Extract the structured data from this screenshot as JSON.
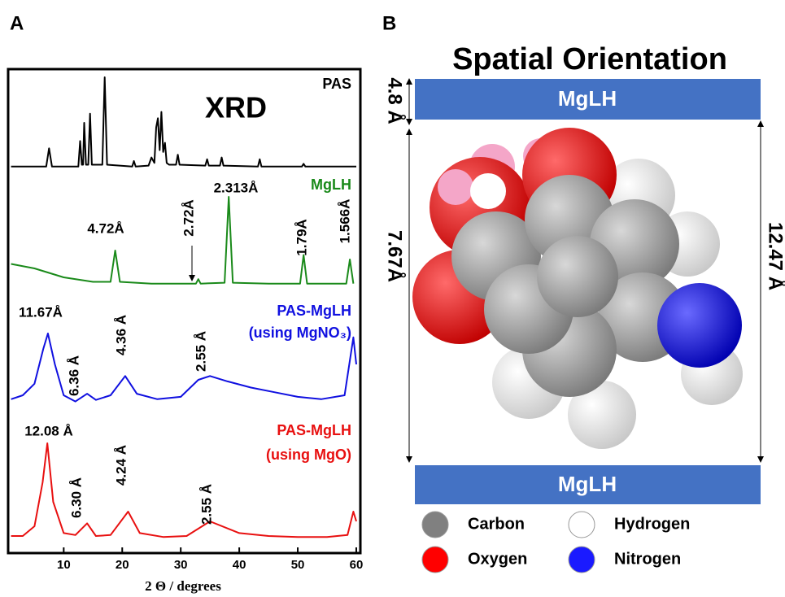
{
  "panel_labels": [
    "A",
    "B"
  ],
  "chart_data": {
    "type": "line",
    "title": "XRD",
    "x_label": "2 Θ / degrees",
    "xlim": [
      0.5,
      60.7
    ],
    "xticks": [
      10,
      20,
      30,
      40,
      50,
      60
    ],
    "series": [
      {
        "name": "PAS",
        "color": "#000000",
        "x": [
          1,
          7,
          7.5,
          8,
          12.5,
          12.8,
          13.1,
          13.3,
          13.5,
          13.8,
          14.2,
          14.5,
          14.8,
          16.6,
          17,
          17.4,
          21.7,
          22,
          22.3,
          24.5,
          25,
          25.5,
          25.8,
          26.1,
          26.4,
          26.7,
          27,
          27.3,
          27.6,
          28,
          29.2,
          29.5,
          29.8,
          34.2,
          34.5,
          34.8,
          36.7,
          37,
          37.3,
          43.2,
          43.5,
          43.8,
          50.7,
          51,
          51.3,
          60
        ],
        "values": [
          2,
          2,
          22,
          2,
          2,
          30,
          4,
          4,
          50,
          4,
          4,
          60,
          4,
          4,
          100,
          4,
          2,
          8,
          2,
          3,
          12,
          6,
          45,
          55,
          20,
          62,
          18,
          28,
          6,
          4,
          4,
          15,
          4,
          3,
          10,
          3,
          3,
          12,
          3,
          2,
          10,
          2,
          2,
          5,
          2,
          2
        ]
      },
      {
        "name": "MgLH",
        "color": "#1a8a1a",
        "x": [
          1,
          5,
          10,
          15,
          18,
          18.8,
          19.6,
          25,
          32.6,
          33,
          33.4,
          37.5,
          38.2,
          38.9,
          45,
          50.4,
          51,
          51.6,
          58.3,
          58.9,
          59.5
        ],
        "values": [
          25,
          20,
          10,
          5,
          5,
          40,
          5,
          3,
          3,
          8,
          3,
          4,
          100,
          4,
          3,
          3,
          35,
          3,
          3,
          30,
          3
        ]
      },
      {
        "name": "PAS-MgLH",
        "subname": "(using MgNO₃)",
        "color": "#1010e0",
        "x": [
          1,
          3,
          5,
          6.5,
          7.3,
          8.5,
          10,
          12,
          14,
          15.5,
          18,
          20.5,
          22.5,
          26,
          30,
          33,
          35,
          38,
          42,
          46,
          50,
          54,
          58,
          59.5,
          60
        ],
        "values": [
          15,
          20,
          35,
          80,
          100,
          60,
          20,
          12,
          22,
          14,
          20,
          45,
          22,
          15,
          18,
          40,
          45,
          38,
          30,
          24,
          18,
          15,
          20,
          95,
          60
        ]
      },
      {
        "name": "PAS-MgLH",
        "subname": "(using MgO)",
        "color": "#e81010",
        "x": [
          1,
          3,
          5,
          6.4,
          7.2,
          8.2,
          10,
          12,
          14,
          15.5,
          18,
          21,
          23,
          27,
          31,
          35,
          40,
          45,
          50,
          55,
          58.5,
          59.5,
          60
        ],
        "values": [
          5,
          5,
          15,
          60,
          100,
          40,
          8,
          6,
          18,
          5,
          6,
          30,
          8,
          4,
          5,
          20,
          8,
          5,
          4,
          4,
          6,
          30,
          20
        ]
      }
    ],
    "annotations": [
      "2.313Å",
      "4.72Å",
      "2.72Å",
      "1.79Å",
      "1.566Å",
      "11.67Å",
      "6.36 Å",
      "4.36 Å",
      "2.55 Å",
      "12.08 Å",
      "6.30 Å",
      "4.24 Å",
      "2.55 Å"
    ]
  },
  "diagram": {
    "title": "Spatial Orientation",
    "layers": [
      "MgLH",
      "MgLH"
    ],
    "dimensions": [
      "4.8 Å",
      "7.67Å",
      "12.47 Å"
    ],
    "legend": [
      {
        "label": "Carbon",
        "color": "#808080"
      },
      {
        "label": "Hydrogen",
        "color": "#ffffff"
      },
      {
        "label": "Oxygen",
        "color": "#ff0000"
      },
      {
        "label": "Nitrogen",
        "color": "#1a1aff"
      }
    ]
  }
}
